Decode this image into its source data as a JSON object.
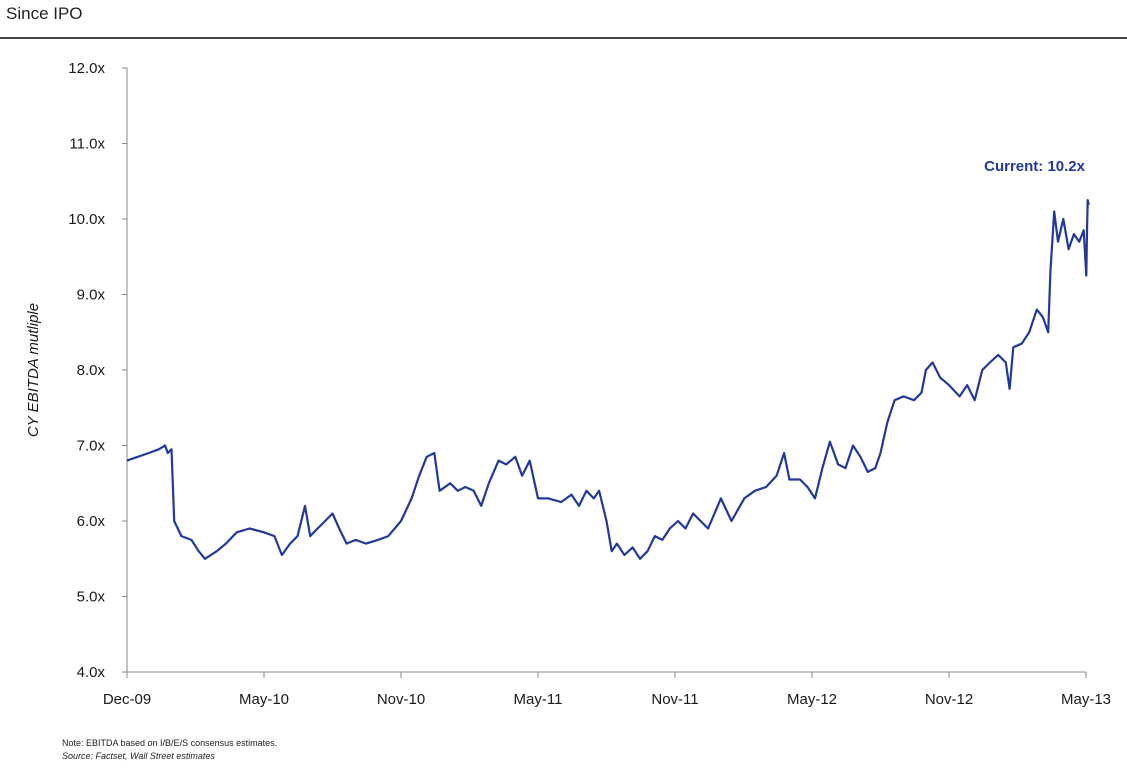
{
  "header": {
    "title": "Since IPO"
  },
  "notes": {
    "note": "Note:  EBITDA based on I/B/E/S consensus estimates.",
    "source_label": "Source:",
    "source_text": "  Factset, Wall Street estimates"
  },
  "colors": {
    "series": "#23399a",
    "axis": "#888888",
    "rule": "#444444"
  },
  "chart_data": {
    "type": "line",
    "title": "",
    "xlabel": "",
    "ylabel": "CY EBITDA mutliple",
    "ylim": [
      4.0,
      12.0
    ],
    "y_ticks": [
      "4.0x",
      "5.0x",
      "6.0x",
      "7.0x",
      "8.0x",
      "9.0x",
      "10.0x",
      "11.0x",
      "12.0x"
    ],
    "x_ticks": [
      "Dec-09",
      "May-10",
      "Nov-10",
      "May-11",
      "Nov-11",
      "May-12",
      "Nov-12",
      "May-13"
    ],
    "grid": false,
    "legend": "none",
    "annotations": [
      {
        "text": "Current: 10.2x",
        "x": "2013-05-24",
        "y": 10.2
      }
    ],
    "series": [
      {
        "name": "",
        "points": [
          [
            "2009-12-15",
            6.8
          ],
          [
            "2009-12-25",
            6.9
          ],
          [
            "2010-01-05",
            6.95
          ],
          [
            "2010-01-12",
            7.0
          ],
          [
            "2010-01-15",
            6.9
          ],
          [
            "2010-01-19",
            6.95
          ],
          [
            "2010-01-22",
            6.0
          ],
          [
            "2010-01-30",
            5.8
          ],
          [
            "2010-02-10",
            5.75
          ],
          [
            "2010-02-18",
            5.6
          ],
          [
            "2010-02-25",
            5.5
          ],
          [
            "2010-03-10",
            5.6
          ],
          [
            "2010-03-20",
            5.7
          ],
          [
            "2010-04-01",
            5.85
          ],
          [
            "2010-04-15",
            5.9
          ],
          [
            "2010-05-01",
            5.85
          ],
          [
            "2010-05-15",
            5.8
          ],
          [
            "2010-05-25",
            5.55
          ],
          [
            "2010-06-05",
            5.7
          ],
          [
            "2010-06-15",
            5.8
          ],
          [
            "2010-06-25",
            6.2
          ],
          [
            "2010-07-02",
            5.8
          ],
          [
            "2010-07-12",
            5.9
          ],
          [
            "2010-07-22",
            6.0
          ],
          [
            "2010-08-01",
            6.1
          ],
          [
            "2010-08-10",
            5.9
          ],
          [
            "2010-08-20",
            5.7
          ],
          [
            "2010-09-01",
            5.75
          ],
          [
            "2010-09-15",
            5.7
          ],
          [
            "2010-10-01",
            5.75
          ],
          [
            "2010-10-15",
            5.8
          ],
          [
            "2010-11-01",
            6.0
          ],
          [
            "2010-11-15",
            6.3
          ],
          [
            "2010-11-25",
            6.6
          ],
          [
            "2010-12-05",
            6.85
          ],
          [
            "2010-12-15",
            6.9
          ],
          [
            "2010-12-22",
            6.4
          ],
          [
            "2011-01-05",
            6.5
          ],
          [
            "2011-01-15",
            6.4
          ],
          [
            "2011-01-25",
            6.45
          ],
          [
            "2011-02-05",
            6.4
          ],
          [
            "2011-02-15",
            6.2
          ],
          [
            "2011-02-25",
            6.5
          ],
          [
            "2011-03-10",
            6.8
          ],
          [
            "2011-03-20",
            6.75
          ],
          [
            "2011-04-01",
            6.85
          ],
          [
            "2011-04-10",
            6.6
          ],
          [
            "2011-04-20",
            6.8
          ],
          [
            "2011-05-01",
            6.3
          ],
          [
            "2011-05-15",
            6.3
          ],
          [
            "2011-06-01",
            6.25
          ],
          [
            "2011-06-15",
            6.35
          ],
          [
            "2011-06-25",
            6.2
          ],
          [
            "2011-07-05",
            6.4
          ],
          [
            "2011-07-15",
            6.3
          ],
          [
            "2011-07-22",
            6.4
          ],
          [
            "2011-08-01",
            6.0
          ],
          [
            "2011-08-08",
            5.6
          ],
          [
            "2011-08-15",
            5.7
          ],
          [
            "2011-08-25",
            5.55
          ],
          [
            "2011-09-05",
            5.65
          ],
          [
            "2011-09-15",
            5.5
          ],
          [
            "2011-09-25",
            5.6
          ],
          [
            "2011-10-05",
            5.8
          ],
          [
            "2011-10-15",
            5.75
          ],
          [
            "2011-10-25",
            5.9
          ],
          [
            "2011-11-05",
            6.0
          ],
          [
            "2011-11-15",
            5.9
          ],
          [
            "2011-11-25",
            6.1
          ],
          [
            "2011-12-05",
            6.0
          ],
          [
            "2011-12-15",
            5.9
          ],
          [
            "2012-01-01",
            6.3
          ],
          [
            "2012-01-15",
            6.0
          ],
          [
            "2012-02-01",
            6.3
          ],
          [
            "2012-02-15",
            6.4
          ],
          [
            "2012-03-01",
            6.45
          ],
          [
            "2012-03-15",
            6.6
          ],
          [
            "2012-03-25",
            6.9
          ],
          [
            "2012-04-01",
            6.55
          ],
          [
            "2012-04-15",
            6.55
          ],
          [
            "2012-04-25",
            6.45
          ],
          [
            "2012-05-05",
            6.3
          ],
          [
            "2012-05-15",
            6.7
          ],
          [
            "2012-05-25",
            7.05
          ],
          [
            "2012-06-05",
            6.75
          ],
          [
            "2012-06-15",
            6.7
          ],
          [
            "2012-06-25",
            7.0
          ],
          [
            "2012-07-05",
            6.85
          ],
          [
            "2012-07-15",
            6.65
          ],
          [
            "2012-07-25",
            6.7
          ],
          [
            "2012-08-01",
            6.9
          ],
          [
            "2012-08-10",
            7.3
          ],
          [
            "2012-08-20",
            7.6
          ],
          [
            "2012-09-01",
            7.65
          ],
          [
            "2012-09-15",
            7.6
          ],
          [
            "2012-09-25",
            7.7
          ],
          [
            "2012-10-01",
            8.0
          ],
          [
            "2012-10-10",
            8.1
          ],
          [
            "2012-10-20",
            7.9
          ],
          [
            "2012-11-01",
            7.8
          ],
          [
            "2012-11-15",
            7.65
          ],
          [
            "2012-11-25",
            7.8
          ],
          [
            "2012-12-05",
            7.6
          ],
          [
            "2012-12-15",
            8.0
          ],
          [
            "2012-12-25",
            8.1
          ],
          [
            "2013-01-05",
            8.2
          ],
          [
            "2013-01-15",
            8.1
          ],
          [
            "2013-01-20",
            7.75
          ],
          [
            "2013-01-25",
            8.3
          ],
          [
            "2013-02-05",
            8.35
          ],
          [
            "2013-02-15",
            8.5
          ],
          [
            "2013-02-25",
            8.8
          ],
          [
            "2013-03-05",
            8.7
          ],
          [
            "2013-03-12",
            8.5
          ],
          [
            "2013-03-15",
            9.3
          ],
          [
            "2013-03-20",
            10.1
          ],
          [
            "2013-03-25",
            9.7
          ],
          [
            "2013-04-01",
            10.0
          ],
          [
            "2013-04-08",
            9.6
          ],
          [
            "2013-04-15",
            9.8
          ],
          [
            "2013-04-22",
            9.7
          ],
          [
            "2013-04-28",
            9.85
          ],
          [
            "2013-05-03",
            9.25
          ],
          [
            "2013-05-08",
            9.9
          ],
          [
            "2013-05-12",
            10.25
          ],
          [
            "2013-05-18",
            10.2
          ],
          [
            "2013-05-24",
            10.2
          ]
        ]
      }
    ]
  }
}
